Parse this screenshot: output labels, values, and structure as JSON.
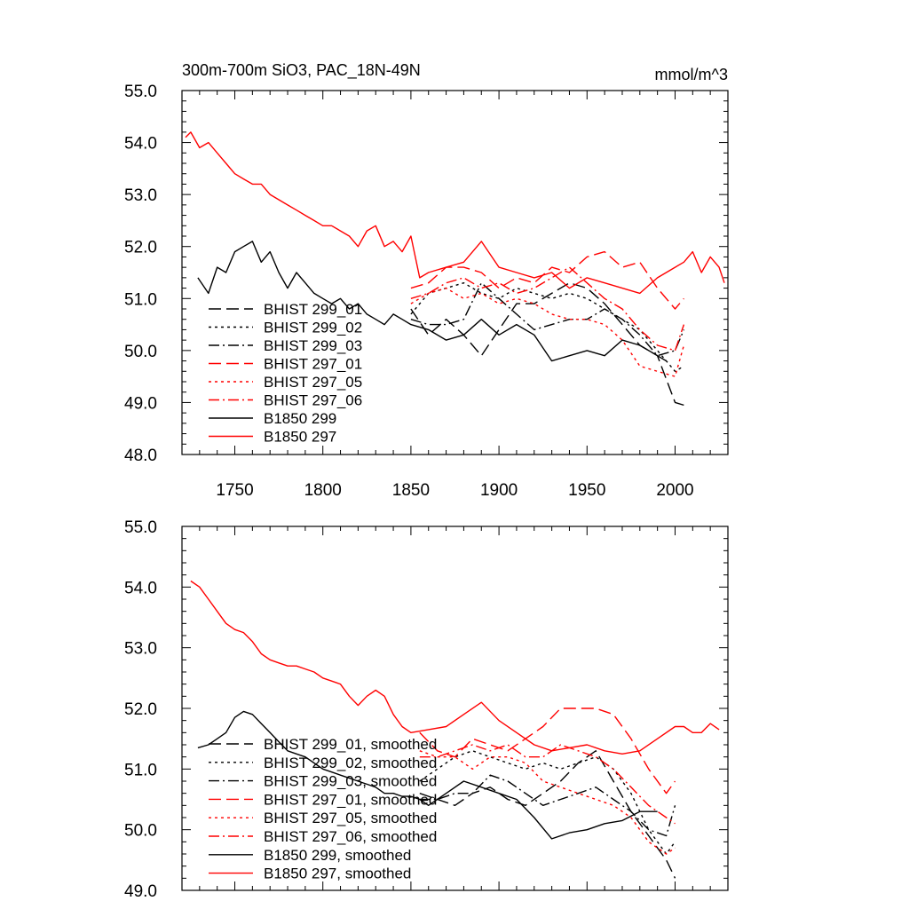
{
  "colors": {
    "black": "#000000",
    "red": "#ff0000"
  },
  "chart_data": [
    {
      "type": "line",
      "title": "300m-700m SiO3, PAC_18N-49N",
      "units": "mmol/m^3",
      "xlim": [
        1720,
        2030
      ],
      "ylim": [
        48.0,
        55.0
      ],
      "xticks": [
        "1750",
        "1800",
        "1850",
        "1900",
        "1950",
        "2000"
      ],
      "yticks": [
        "48.0",
        "49.0",
        "50.0",
        "51.0",
        "52.0",
        "53.0",
        "54.0",
        "55.0"
      ],
      "legend_position": "lower-left",
      "series": [
        {
          "name": "BHIST 299_01",
          "color": "#000000",
          "dash": "dashed",
          "x": [
            1850,
            1860,
            1870,
            1880,
            1890,
            1900,
            1910,
            1920,
            1930,
            1940,
            1950,
            1960,
            1970,
            1980,
            1990,
            2000,
            2005
          ],
          "y": [
            50.8,
            50.3,
            50.6,
            50.3,
            49.9,
            50.4,
            50.9,
            50.9,
            51.1,
            51.3,
            51.2,
            50.9,
            50.5,
            50.1,
            49.9,
            49.0,
            48.95
          ]
        },
        {
          "name": "BHIST 299_02",
          "color": "#000000",
          "dash": "dotted",
          "x": [
            1850,
            1860,
            1870,
            1880,
            1890,
            1900,
            1910,
            1920,
            1930,
            1940,
            1950,
            1960,
            1970,
            1980,
            1990,
            2000,
            2005
          ],
          "y": [
            50.7,
            51.1,
            51.2,
            51.3,
            51.1,
            51.0,
            51.2,
            51.1,
            51.0,
            51.1,
            51.0,
            50.8,
            50.6,
            50.4,
            50.0,
            49.6,
            49.7
          ]
        },
        {
          "name": "BHIST 299_03",
          "color": "#000000",
          "dash": "dashdot",
          "x": [
            1850,
            1860,
            1870,
            1880,
            1890,
            1900,
            1910,
            1920,
            1930,
            1940,
            1950,
            1960,
            1970,
            1980,
            1990,
            2000,
            2005
          ],
          "y": [
            50.6,
            50.5,
            50.5,
            50.6,
            51.3,
            51.0,
            50.7,
            50.4,
            50.5,
            50.6,
            50.6,
            50.8,
            50.6,
            50.3,
            49.9,
            50.0,
            50.4
          ]
        },
        {
          "name": "BHIST 297_01",
          "color": "#ff0000",
          "dash": "dashed",
          "x": [
            1850,
            1860,
            1870,
            1880,
            1890,
            1900,
            1910,
            1920,
            1930,
            1940,
            1950,
            1960,
            1970,
            1980,
            1990,
            2000,
            2005
          ],
          "y": [
            51.2,
            51.3,
            51.6,
            51.6,
            51.5,
            51.2,
            51.4,
            51.3,
            51.6,
            51.5,
            51.8,
            51.9,
            51.6,
            51.7,
            51.2,
            50.8,
            51.0
          ]
        },
        {
          "name": "BHIST 297_05",
          "color": "#ff0000",
          "dash": "dotted",
          "x": [
            1850,
            1860,
            1870,
            1880,
            1890,
            1900,
            1910,
            1920,
            1930,
            1940,
            1950,
            1960,
            1970,
            1980,
            1990,
            2000,
            2005
          ],
          "y": [
            50.9,
            51.1,
            51.2,
            51.0,
            51.1,
            50.9,
            51.0,
            50.9,
            50.7,
            50.6,
            50.6,
            50.5,
            50.2,
            49.7,
            49.6,
            49.5,
            50.1
          ]
        },
        {
          "name": "BHIST 297_06",
          "color": "#ff0000",
          "dash": "dashdot",
          "x": [
            1850,
            1860,
            1870,
            1880,
            1890,
            1900,
            1910,
            1920,
            1930,
            1940,
            1950,
            1960,
            1970,
            1980,
            1990,
            2000,
            2005
          ],
          "y": [
            51.0,
            51.1,
            51.3,
            51.4,
            51.2,
            51.3,
            51.1,
            51.2,
            51.4,
            51.6,
            51.3,
            51.0,
            50.8,
            50.4,
            50.1,
            50.0,
            50.5
          ]
        },
        {
          "name": "B1850 299",
          "color": "#000000",
          "dash": "solid",
          "x": [
            1729,
            1735,
            1740,
            1745,
            1750,
            1755,
            1760,
            1765,
            1770,
            1775,
            1780,
            1785,
            1790,
            1795,
            1800,
            1805,
            1810,
            1815,
            1820,
            1825,
            1830,
            1835,
            1840,
            1845,
            1850,
            1860,
            1870,
            1880,
            1890,
            1900,
            1910,
            1920,
            1930,
            1940,
            1950,
            1960,
            1970,
            1980,
            1990,
            1995
          ],
          "y": [
            51.4,
            51.1,
            51.6,
            51.5,
            51.9,
            52.0,
            52.1,
            51.7,
            51.9,
            51.5,
            51.2,
            51.5,
            51.3,
            51.1,
            51.0,
            50.9,
            51.0,
            50.8,
            50.9,
            50.7,
            50.6,
            50.5,
            50.7,
            50.6,
            50.5,
            50.4,
            50.2,
            50.3,
            50.6,
            50.3,
            50.5,
            50.3,
            49.8,
            49.9,
            50.0,
            49.9,
            50.2,
            50.1,
            49.9,
            49.8
          ]
        },
        {
          "name": "B1850 297",
          "color": "#ff0000",
          "dash": "solid",
          "x": [
            1722,
            1725,
            1730,
            1735,
            1740,
            1745,
            1750,
            1755,
            1760,
            1765,
            1770,
            1775,
            1780,
            1785,
            1790,
            1795,
            1800,
            1805,
            1810,
            1815,
            1820,
            1825,
            1830,
            1835,
            1840,
            1845,
            1850,
            1855,
            1860,
            1870,
            1880,
            1890,
            1900,
            1910,
            1920,
            1930,
            1940,
            1950,
            1960,
            1970,
            1980,
            1990,
            2000,
            2005,
            2010,
            2015,
            2020,
            2025,
            2028
          ],
          "y": [
            54.1,
            54.2,
            53.9,
            54.0,
            53.8,
            53.6,
            53.4,
            53.3,
            53.2,
            53.2,
            53.0,
            52.9,
            52.8,
            52.7,
            52.6,
            52.5,
            52.4,
            52.4,
            52.3,
            52.2,
            52.0,
            52.3,
            52.4,
            52.0,
            52.1,
            51.9,
            52.2,
            51.4,
            51.5,
            51.6,
            51.7,
            52.1,
            51.6,
            51.5,
            51.4,
            51.5,
            51.2,
            51.4,
            51.3,
            51.2,
            51.1,
            51.4,
            51.6,
            51.7,
            51.9,
            51.5,
            51.8,
            51.6,
            51.3
          ]
        }
      ]
    },
    {
      "type": "line",
      "xlim": [
        1720,
        2030
      ],
      "ylim": [
        49.0,
        55.0
      ],
      "yticks": [
        "49.0",
        "50.0",
        "51.0",
        "52.0",
        "53.0",
        "54.0",
        "55.0"
      ],
      "legend_position": "lower-left",
      "series": [
        {
          "name": "BHIST 299_01, smoothed",
          "color": "#000000",
          "dash": "dashed",
          "x": [
            1855,
            1865,
            1875,
            1885,
            1895,
            1905,
            1915,
            1925,
            1935,
            1945,
            1955,
            1965,
            1975,
            1985,
            1995,
            2000
          ],
          "y": [
            50.6,
            50.5,
            50.4,
            50.6,
            50.7,
            50.5,
            50.4,
            50.6,
            50.8,
            51.1,
            51.3,
            50.8,
            50.3,
            49.9,
            49.5,
            49.2
          ]
        },
        {
          "name": "BHIST 299_02, smoothed",
          "color": "#000000",
          "dash": "dotted",
          "x": [
            1855,
            1865,
            1875,
            1885,
            1895,
            1905,
            1915,
            1925,
            1935,
            1945,
            1955,
            1965,
            1975,
            1985,
            1995,
            2000
          ],
          "y": [
            50.8,
            51.0,
            51.2,
            51.3,
            51.2,
            51.1,
            51.0,
            51.1,
            51.0,
            51.1,
            51.2,
            51.0,
            50.6,
            50.0,
            49.6,
            49.8
          ]
        },
        {
          "name": "BHIST 299_03, smoothed",
          "color": "#000000",
          "dash": "dashdot",
          "x": [
            1855,
            1865,
            1875,
            1885,
            1895,
            1905,
            1915,
            1925,
            1935,
            1945,
            1955,
            1965,
            1975,
            1985,
            1995,
            2000
          ],
          "y": [
            50.5,
            50.5,
            50.6,
            50.6,
            50.9,
            50.8,
            50.6,
            50.4,
            50.5,
            50.6,
            50.7,
            50.5,
            50.3,
            50.0,
            49.9,
            50.4
          ]
        },
        {
          "name": "BHIST 297_01, smoothed",
          "color": "#ff0000",
          "dash": "dashed",
          "x": [
            1855,
            1865,
            1875,
            1885,
            1895,
            1905,
            1915,
            1925,
            1935,
            1945,
            1955,
            1965,
            1975,
            1985,
            1995,
            2000
          ],
          "y": [
            51.6,
            51.3,
            51.2,
            51.5,
            51.4,
            51.3,
            51.5,
            51.7,
            52.0,
            52.0,
            52.0,
            51.9,
            51.5,
            51.0,
            50.6,
            50.8
          ]
        },
        {
          "name": "BHIST 297_05, smoothed",
          "color": "#ff0000",
          "dash": "dotted",
          "x": [
            1855,
            1865,
            1875,
            1885,
            1895,
            1905,
            1915,
            1925,
            1935,
            1945,
            1955,
            1965,
            1975,
            1985,
            1995,
            2000
          ],
          "y": [
            51.3,
            51.2,
            51.2,
            51.0,
            51.2,
            51.2,
            51.1,
            50.8,
            50.7,
            50.6,
            50.5,
            50.4,
            50.2,
            49.8,
            49.6,
            49.7
          ]
        },
        {
          "name": "BHIST 297_06, smoothed",
          "color": "#ff0000",
          "dash": "dashdot",
          "x": [
            1855,
            1865,
            1875,
            1885,
            1895,
            1905,
            1915,
            1925,
            1935,
            1945,
            1955,
            1965,
            1975,
            1985,
            1995,
            2000
          ],
          "y": [
            51.2,
            51.2,
            51.3,
            51.4,
            51.3,
            51.4,
            51.2,
            51.2,
            51.4,
            51.3,
            51.2,
            51.0,
            50.7,
            50.4,
            50.2,
            50.1
          ]
        },
        {
          "name": "B1850 299, smoothed",
          "color": "#000000",
          "dash": "solid",
          "x": [
            1729,
            1735,
            1740,
            1745,
            1750,
            1755,
            1760,
            1765,
            1770,
            1775,
            1780,
            1785,
            1790,
            1795,
            1800,
            1805,
            1810,
            1815,
            1820,
            1825,
            1830,
            1835,
            1840,
            1845,
            1850,
            1855,
            1860,
            1870,
            1880,
            1890,
            1900,
            1910,
            1920,
            1930,
            1940,
            1950,
            1960,
            1970,
            1980,
            1990
          ],
          "y": [
            51.35,
            51.4,
            51.5,
            51.6,
            51.85,
            51.95,
            51.9,
            51.75,
            51.6,
            51.45,
            51.3,
            51.25,
            51.2,
            51.1,
            51.0,
            50.95,
            50.9,
            50.85,
            50.8,
            50.75,
            50.7,
            50.6,
            50.6,
            50.55,
            50.55,
            50.5,
            50.4,
            50.6,
            50.8,
            50.7,
            50.6,
            50.5,
            50.2,
            49.85,
            49.95,
            50.0,
            50.1,
            50.15,
            50.3,
            50.3
          ]
        },
        {
          "name": "B1850 297, smoothed",
          "color": "#ff0000",
          "dash": "solid",
          "x": [
            1725,
            1730,
            1735,
            1740,
            1745,
            1750,
            1755,
            1760,
            1765,
            1770,
            1775,
            1780,
            1785,
            1790,
            1795,
            1800,
            1805,
            1810,
            1815,
            1820,
            1825,
            1830,
            1835,
            1840,
            1845,
            1850,
            1860,
            1870,
            1880,
            1890,
            1900,
            1910,
            1920,
            1930,
            1940,
            1950,
            1960,
            1970,
            1980,
            1990,
            2000,
            2005,
            2010,
            2015,
            2020,
            2025
          ],
          "y": [
            54.1,
            54.0,
            53.8,
            53.6,
            53.4,
            53.3,
            53.25,
            53.1,
            52.9,
            52.8,
            52.75,
            52.7,
            52.7,
            52.65,
            52.6,
            52.5,
            52.45,
            52.4,
            52.2,
            52.05,
            52.2,
            52.3,
            52.2,
            51.9,
            51.7,
            51.6,
            51.65,
            51.7,
            51.9,
            52.1,
            51.8,
            51.6,
            51.4,
            51.3,
            51.35,
            51.4,
            51.3,
            51.25,
            51.3,
            51.5,
            51.7,
            51.7,
            51.6,
            51.6,
            51.75,
            51.65
          ]
        }
      ]
    }
  ]
}
